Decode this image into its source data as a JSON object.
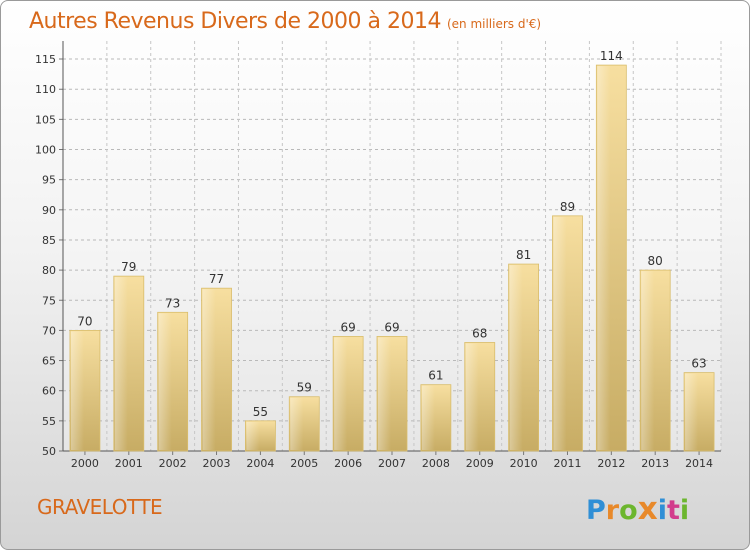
{
  "title": "Autres Revenus Divers de 2000 à 2014",
  "subtitle": "(en milliers d'€)",
  "commune": "GRAVELOTTE",
  "logo": {
    "letters": [
      "P",
      "r",
      "o",
      "x",
      "i",
      "t",
      "i"
    ],
    "colors": [
      "#2f8fd6",
      "#e8892a",
      "#6cb62e",
      "#e8892a",
      "#2f8fd6",
      "#d23c8c",
      "#6cb62e"
    ]
  },
  "chart_data": {
    "type": "bar",
    "categories": [
      "2000",
      "2001",
      "2002",
      "2003",
      "2004",
      "2005",
      "2006",
      "2007",
      "2008",
      "2009",
      "2010",
      "2011",
      "2012",
      "2013",
      "2014"
    ],
    "values": [
      70,
      79,
      73,
      77,
      55,
      59,
      69,
      69,
      61,
      68,
      81,
      89,
      114,
      80,
      63
    ],
    "ylim": [
      50,
      117
    ],
    "yticks": [
      50,
      55,
      60,
      65,
      70,
      75,
      80,
      85,
      90,
      95,
      100,
      105,
      110,
      115
    ],
    "grid": true,
    "bar_color": "#e6c76e"
  }
}
